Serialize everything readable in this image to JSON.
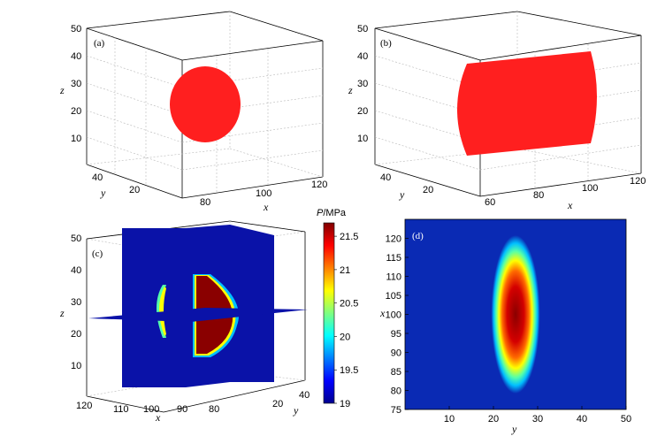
{
  "chart_data": [
    {
      "panel": "(a)",
      "type": "scatter",
      "title": "",
      "description_kind": "3d-volume",
      "xlabel": "x",
      "ylabel": "y",
      "zlabel": "z",
      "xticks": [
        "80",
        "100",
        "120"
      ],
      "yticks": [
        "20",
        "40"
      ],
      "zticks": [
        "10",
        "20",
        "30",
        "40",
        "50"
      ],
      "zlim": [
        0,
        50
      ],
      "shape": "sphere",
      "color": "#ff1f1f",
      "center": {
        "x": 90,
        "y": 25,
        "z": 25
      },
      "radius": 12
    },
    {
      "panel": "(b)",
      "type": "scatter",
      "description_kind": "3d-volume",
      "xlabel": "x",
      "ylabel": "y",
      "zlabel": "z",
      "xticks": [
        "60",
        "80",
        "100",
        "120"
      ],
      "yticks": [
        "20",
        "40"
      ],
      "zticks": [
        "10",
        "20",
        "30",
        "40",
        "50"
      ],
      "zlim": [
        0,
        50
      ],
      "shape": "cylinder",
      "color": "#ff1f1f",
      "x_range": [
        60,
        115
      ],
      "radius": 12
    },
    {
      "panel": "(c)",
      "type": "heatmap",
      "description_kind": "3d-slices",
      "xlabel": "x",
      "ylabel": "y",
      "zlabel": "z",
      "xticks": [
        "120",
        "110",
        "100",
        "90",
        "80"
      ],
      "yticks": [
        "20",
        "40"
      ],
      "zticks": [
        "10",
        "20",
        "30",
        "40",
        "50"
      ],
      "colorbar": {
        "label_var": "P",
        "label_unit": "/MPa",
        "ticks": [
          "19",
          "19.5",
          "20",
          "20.5",
          "21",
          "21.5"
        ],
        "ticks_values": [
          19,
          19.5,
          20,
          20.5,
          21,
          21.5
        ],
        "range": [
          19,
          21.7
        ]
      },
      "background_value": 19,
      "inner_value": 21.7
    },
    {
      "panel": "(d)",
      "type": "heatmap",
      "xlabel": "y",
      "ylabel": "x",
      "xlim": [
        0,
        50
      ],
      "ylim": [
        75,
        125
      ],
      "xticks": [
        "10",
        "20",
        "30",
        "40",
        "50"
      ],
      "xticks_values": [
        10,
        20,
        30,
        40,
        50
      ],
      "yticks": [
        "75",
        "80",
        "85",
        "90",
        "95",
        "100",
        "105",
        "110",
        "115",
        "120"
      ],
      "yticks_values": [
        75,
        80,
        85,
        90,
        95,
        100,
        105,
        110,
        115,
        120
      ],
      "ellipse": {
        "cy": 25,
        "cx": 100,
        "ry": 2.5,
        "rx": 13
      },
      "background_value": 19,
      "peak_value": 21.7
    }
  ]
}
